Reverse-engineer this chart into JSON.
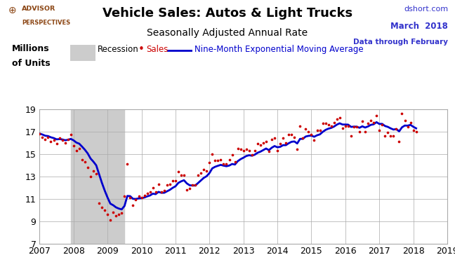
{
  "title": "Vehicle Sales: Autos & Light Trucks",
  "subtitle": "Seasonally Adjusted Annual Rate",
  "ylabel_line1": "Millions",
  "ylabel_line2": "of Units",
  "right_text_line1": "dshort.com",
  "right_text_line2": "March  2018",
  "right_text_line3": "Data through February",
  "xlim": [
    2007,
    2019
  ],
  "ylim": [
    7,
    19
  ],
  "yticks": [
    7,
    9,
    11,
    13,
    15,
    17,
    19
  ],
  "xticks": [
    2007,
    2008,
    2009,
    2010,
    2011,
    2012,
    2013,
    2014,
    2015,
    2016,
    2017,
    2018,
    2019
  ],
  "recession_bands": [
    [
      2007.917,
      2009.5
    ]
  ],
  "recession_color": "#cccccc",
  "sales_color": "#cc0000",
  "ema_color": "#0000cc",
  "background_color": "#ffffff",
  "grid_color": "#aaaaaa",
  "sales_data": [
    [
      2007.0,
      16.8
    ],
    [
      2007.083,
      16.5
    ],
    [
      2007.167,
      16.3
    ],
    [
      2007.25,
      16.5
    ],
    [
      2007.333,
      16.1
    ],
    [
      2007.417,
      16.2
    ],
    [
      2007.5,
      15.9
    ],
    [
      2007.583,
      16.4
    ],
    [
      2007.667,
      16.2
    ],
    [
      2007.75,
      16.0
    ],
    [
      2007.833,
      16.3
    ],
    [
      2007.917,
      16.7
    ],
    [
      2008.0,
      15.7
    ],
    [
      2008.083,
      15.3
    ],
    [
      2008.167,
      15.5
    ],
    [
      2008.25,
      14.5
    ],
    [
      2008.333,
      14.3
    ],
    [
      2008.417,
      13.8
    ],
    [
      2008.5,
      13.0
    ],
    [
      2008.583,
      13.5
    ],
    [
      2008.667,
      13.2
    ],
    [
      2008.75,
      10.6
    ],
    [
      2008.833,
      10.2
    ],
    [
      2008.917,
      10.0
    ],
    [
      2009.0,
      9.6
    ],
    [
      2009.083,
      9.1
    ],
    [
      2009.167,
      9.8
    ],
    [
      2009.25,
      9.5
    ],
    [
      2009.333,
      9.6
    ],
    [
      2009.417,
      9.7
    ],
    [
      2009.5,
      11.2
    ],
    [
      2009.583,
      14.1
    ],
    [
      2009.667,
      11.1
    ],
    [
      2009.75,
      10.4
    ],
    [
      2009.833,
      10.9
    ],
    [
      2009.917,
      11.2
    ],
    [
      2010.0,
      11.1
    ],
    [
      2010.083,
      11.3
    ],
    [
      2010.167,
      11.5
    ],
    [
      2010.25,
      11.6
    ],
    [
      2010.333,
      12.0
    ],
    [
      2010.417,
      11.6
    ],
    [
      2010.5,
      12.3
    ],
    [
      2010.583,
      11.6
    ],
    [
      2010.667,
      11.7
    ],
    [
      2010.75,
      12.2
    ],
    [
      2010.833,
      12.3
    ],
    [
      2010.917,
      12.6
    ],
    [
      2011.0,
      12.6
    ],
    [
      2011.083,
      13.4
    ],
    [
      2011.167,
      13.1
    ],
    [
      2011.25,
      13.1
    ],
    [
      2011.333,
      11.8
    ],
    [
      2011.417,
      11.9
    ],
    [
      2011.5,
      12.2
    ],
    [
      2011.583,
      12.2
    ],
    [
      2011.667,
      13.1
    ],
    [
      2011.75,
      13.3
    ],
    [
      2011.833,
      13.6
    ],
    [
      2011.917,
      13.5
    ],
    [
      2012.0,
      14.2
    ],
    [
      2012.083,
      15.0
    ],
    [
      2012.167,
      14.4
    ],
    [
      2012.25,
      14.4
    ],
    [
      2012.333,
      14.5
    ],
    [
      2012.417,
      14.1
    ],
    [
      2012.5,
      14.1
    ],
    [
      2012.583,
      14.5
    ],
    [
      2012.667,
      14.9
    ],
    [
      2012.75,
      14.3
    ],
    [
      2012.833,
      15.5
    ],
    [
      2012.917,
      15.4
    ],
    [
      2013.0,
      15.3
    ],
    [
      2013.083,
      15.4
    ],
    [
      2013.167,
      15.3
    ],
    [
      2013.25,
      14.9
    ],
    [
      2013.333,
      15.3
    ],
    [
      2013.417,
      15.9
    ],
    [
      2013.5,
      15.8
    ],
    [
      2013.583,
      16.0
    ],
    [
      2013.667,
      16.1
    ],
    [
      2013.75,
      15.2
    ],
    [
      2013.833,
      16.3
    ],
    [
      2013.917,
      16.4
    ],
    [
      2014.0,
      15.3
    ],
    [
      2014.083,
      15.9
    ],
    [
      2014.167,
      16.4
    ],
    [
      2014.25,
      16.0
    ],
    [
      2014.333,
      16.7
    ],
    [
      2014.417,
      16.7
    ],
    [
      2014.5,
      16.5
    ],
    [
      2014.583,
      15.4
    ],
    [
      2014.667,
      17.5
    ],
    [
      2014.75,
      16.4
    ],
    [
      2014.833,
      17.2
    ],
    [
      2014.917,
      17.0
    ],
    [
      2015.0,
      16.7
    ],
    [
      2015.083,
      16.2
    ],
    [
      2015.167,
      17.1
    ],
    [
      2015.25,
      17.1
    ],
    [
      2015.333,
      17.7
    ],
    [
      2015.417,
      17.7
    ],
    [
      2015.5,
      17.6
    ],
    [
      2015.583,
      17.5
    ],
    [
      2015.667,
      17.8
    ],
    [
      2015.75,
      18.1
    ],
    [
      2015.833,
      18.2
    ],
    [
      2015.917,
      17.3
    ],
    [
      2016.0,
      17.5
    ],
    [
      2016.083,
      17.5
    ],
    [
      2016.167,
      16.6
    ],
    [
      2016.25,
      17.4
    ],
    [
      2016.333,
      17.4
    ],
    [
      2016.417,
      17.0
    ],
    [
      2016.5,
      17.9
    ],
    [
      2016.583,
      17.0
    ],
    [
      2016.667,
      17.7
    ],
    [
      2016.75,
      18.0
    ],
    [
      2016.833,
      17.8
    ],
    [
      2016.917,
      18.4
    ],
    [
      2017.0,
      17.1
    ],
    [
      2017.083,
      17.6
    ],
    [
      2017.167,
      16.6
    ],
    [
      2017.25,
      16.9
    ],
    [
      2017.333,
      16.6
    ],
    [
      2017.417,
      16.6
    ],
    [
      2017.5,
      17.2
    ],
    [
      2017.583,
      16.1
    ],
    [
      2017.667,
      18.6
    ],
    [
      2017.75,
      18.0
    ],
    [
      2017.833,
      17.4
    ],
    [
      2017.917,
      17.8
    ],
    [
      2018.0,
      17.1
    ],
    [
      2018.083,
      17.0
    ]
  ],
  "ema_data": [
    [
      2007.0,
      16.8
    ],
    [
      2007.083,
      16.72
    ],
    [
      2007.167,
      16.61
    ],
    [
      2007.25,
      16.58
    ],
    [
      2007.333,
      16.47
    ],
    [
      2007.417,
      16.4
    ],
    [
      2007.5,
      16.29
    ],
    [
      2007.583,
      16.31
    ],
    [
      2007.667,
      16.28
    ],
    [
      2007.75,
      16.21
    ],
    [
      2007.833,
      16.24
    ],
    [
      2007.917,
      16.33
    ],
    [
      2008.0,
      16.2
    ],
    [
      2008.083,
      16.0
    ],
    [
      2008.167,
      15.9
    ],
    [
      2008.25,
      15.64
    ],
    [
      2008.333,
      15.36
    ],
    [
      2008.417,
      15.03
    ],
    [
      2008.5,
      14.58
    ],
    [
      2008.583,
      14.3
    ],
    [
      2008.667,
      13.97
    ],
    [
      2008.75,
      13.2
    ],
    [
      2008.833,
      12.42
    ],
    [
      2008.917,
      11.72
    ],
    [
      2009.0,
      11.1
    ],
    [
      2009.083,
      10.55
    ],
    [
      2009.167,
      10.41
    ],
    [
      2009.25,
      10.22
    ],
    [
      2009.333,
      10.11
    ],
    [
      2009.417,
      10.04
    ],
    [
      2009.5,
      10.35
    ],
    [
      2009.583,
      11.24
    ],
    [
      2009.667,
      11.22
    ],
    [
      2009.75,
      10.98
    ],
    [
      2009.833,
      10.97
    ],
    [
      2009.917,
      11.02
    ],
    [
      2010.0,
      11.04
    ],
    [
      2010.083,
      11.1
    ],
    [
      2010.167,
      11.2
    ],
    [
      2010.25,
      11.28
    ],
    [
      2010.333,
      11.44
    ],
    [
      2010.417,
      11.4
    ],
    [
      2010.5,
      11.6
    ],
    [
      2010.583,
      11.52
    ],
    [
      2010.667,
      11.52
    ],
    [
      2010.75,
      11.65
    ],
    [
      2010.833,
      11.78
    ],
    [
      2010.917,
      11.96
    ],
    [
      2011.0,
      12.1
    ],
    [
      2011.083,
      12.4
    ],
    [
      2011.167,
      12.54
    ],
    [
      2011.25,
      12.64
    ],
    [
      2011.333,
      12.36
    ],
    [
      2011.417,
      12.19
    ],
    [
      2011.5,
      12.17
    ],
    [
      2011.583,
      12.17
    ],
    [
      2011.667,
      12.4
    ],
    [
      2011.75,
      12.62
    ],
    [
      2011.833,
      12.85
    ],
    [
      2011.917,
      13.0
    ],
    [
      2012.0,
      13.28
    ],
    [
      2012.083,
      13.7
    ],
    [
      2012.167,
      13.84
    ],
    [
      2012.25,
      13.93
    ],
    [
      2012.333,
      14.01
    ],
    [
      2012.417,
      13.94
    ],
    [
      2012.5,
      13.89
    ],
    [
      2012.583,
      13.95
    ],
    [
      2012.667,
      14.09
    ],
    [
      2012.75,
      14.04
    ],
    [
      2012.833,
      14.34
    ],
    [
      2012.917,
      14.52
    ],
    [
      2013.0,
      14.65
    ],
    [
      2013.083,
      14.8
    ],
    [
      2013.167,
      14.87
    ],
    [
      2013.25,
      14.83
    ],
    [
      2013.333,
      14.92
    ],
    [
      2013.417,
      15.09
    ],
    [
      2013.5,
      15.19
    ],
    [
      2013.583,
      15.33
    ],
    [
      2013.667,
      15.47
    ],
    [
      2013.75,
      15.32
    ],
    [
      2013.833,
      15.54
    ],
    [
      2013.917,
      15.69
    ],
    [
      2014.0,
      15.58
    ],
    [
      2014.083,
      15.62
    ],
    [
      2014.167,
      15.77
    ],
    [
      2014.25,
      15.77
    ],
    [
      2014.333,
      15.94
    ],
    [
      2014.417,
      16.07
    ],
    [
      2014.5,
      16.1
    ],
    [
      2014.583,
      15.92
    ],
    [
      2014.667,
      16.33
    ],
    [
      2014.75,
      16.33
    ],
    [
      2014.833,
      16.54
    ],
    [
      2014.917,
      16.6
    ],
    [
      2015.0,
      16.62
    ],
    [
      2015.083,
      16.52
    ],
    [
      2015.167,
      16.65
    ],
    [
      2015.25,
      16.73
    ],
    [
      2015.333,
      16.95
    ],
    [
      2015.417,
      17.13
    ],
    [
      2015.5,
      17.24
    ],
    [
      2015.583,
      17.31
    ],
    [
      2015.667,
      17.43
    ],
    [
      2015.75,
      17.6
    ],
    [
      2015.833,
      17.72
    ],
    [
      2015.917,
      17.61
    ],
    [
      2016.0,
      17.61
    ],
    [
      2016.083,
      17.6
    ],
    [
      2016.167,
      17.4
    ],
    [
      2016.25,
      17.42
    ],
    [
      2016.333,
      17.42
    ],
    [
      2016.417,
      17.32
    ],
    [
      2016.5,
      17.45
    ],
    [
      2016.583,
      17.34
    ],
    [
      2016.667,
      17.44
    ],
    [
      2016.75,
      17.58
    ],
    [
      2016.833,
      17.63
    ],
    [
      2016.917,
      17.82
    ],
    [
      2017.0,
      17.66
    ],
    [
      2017.083,
      17.67
    ],
    [
      2017.167,
      17.48
    ],
    [
      2017.25,
      17.4
    ],
    [
      2017.333,
      17.27
    ],
    [
      2017.417,
      17.16
    ],
    [
      2017.5,
      17.21
    ],
    [
      2017.583,
      17.0
    ],
    [
      2017.667,
      17.36
    ],
    [
      2017.75,
      17.52
    ],
    [
      2017.833,
      17.51
    ],
    [
      2017.917,
      17.58
    ],
    [
      2018.0,
      17.41
    ],
    [
      2018.083,
      17.27
    ]
  ],
  "advisor_color": "#8B4513",
  "right_color": "#3333cc",
  "title_fontsize": 13,
  "subtitle_fontsize": 10,
  "legend_fontsize": 8.5,
  "axis_fontsize": 9
}
